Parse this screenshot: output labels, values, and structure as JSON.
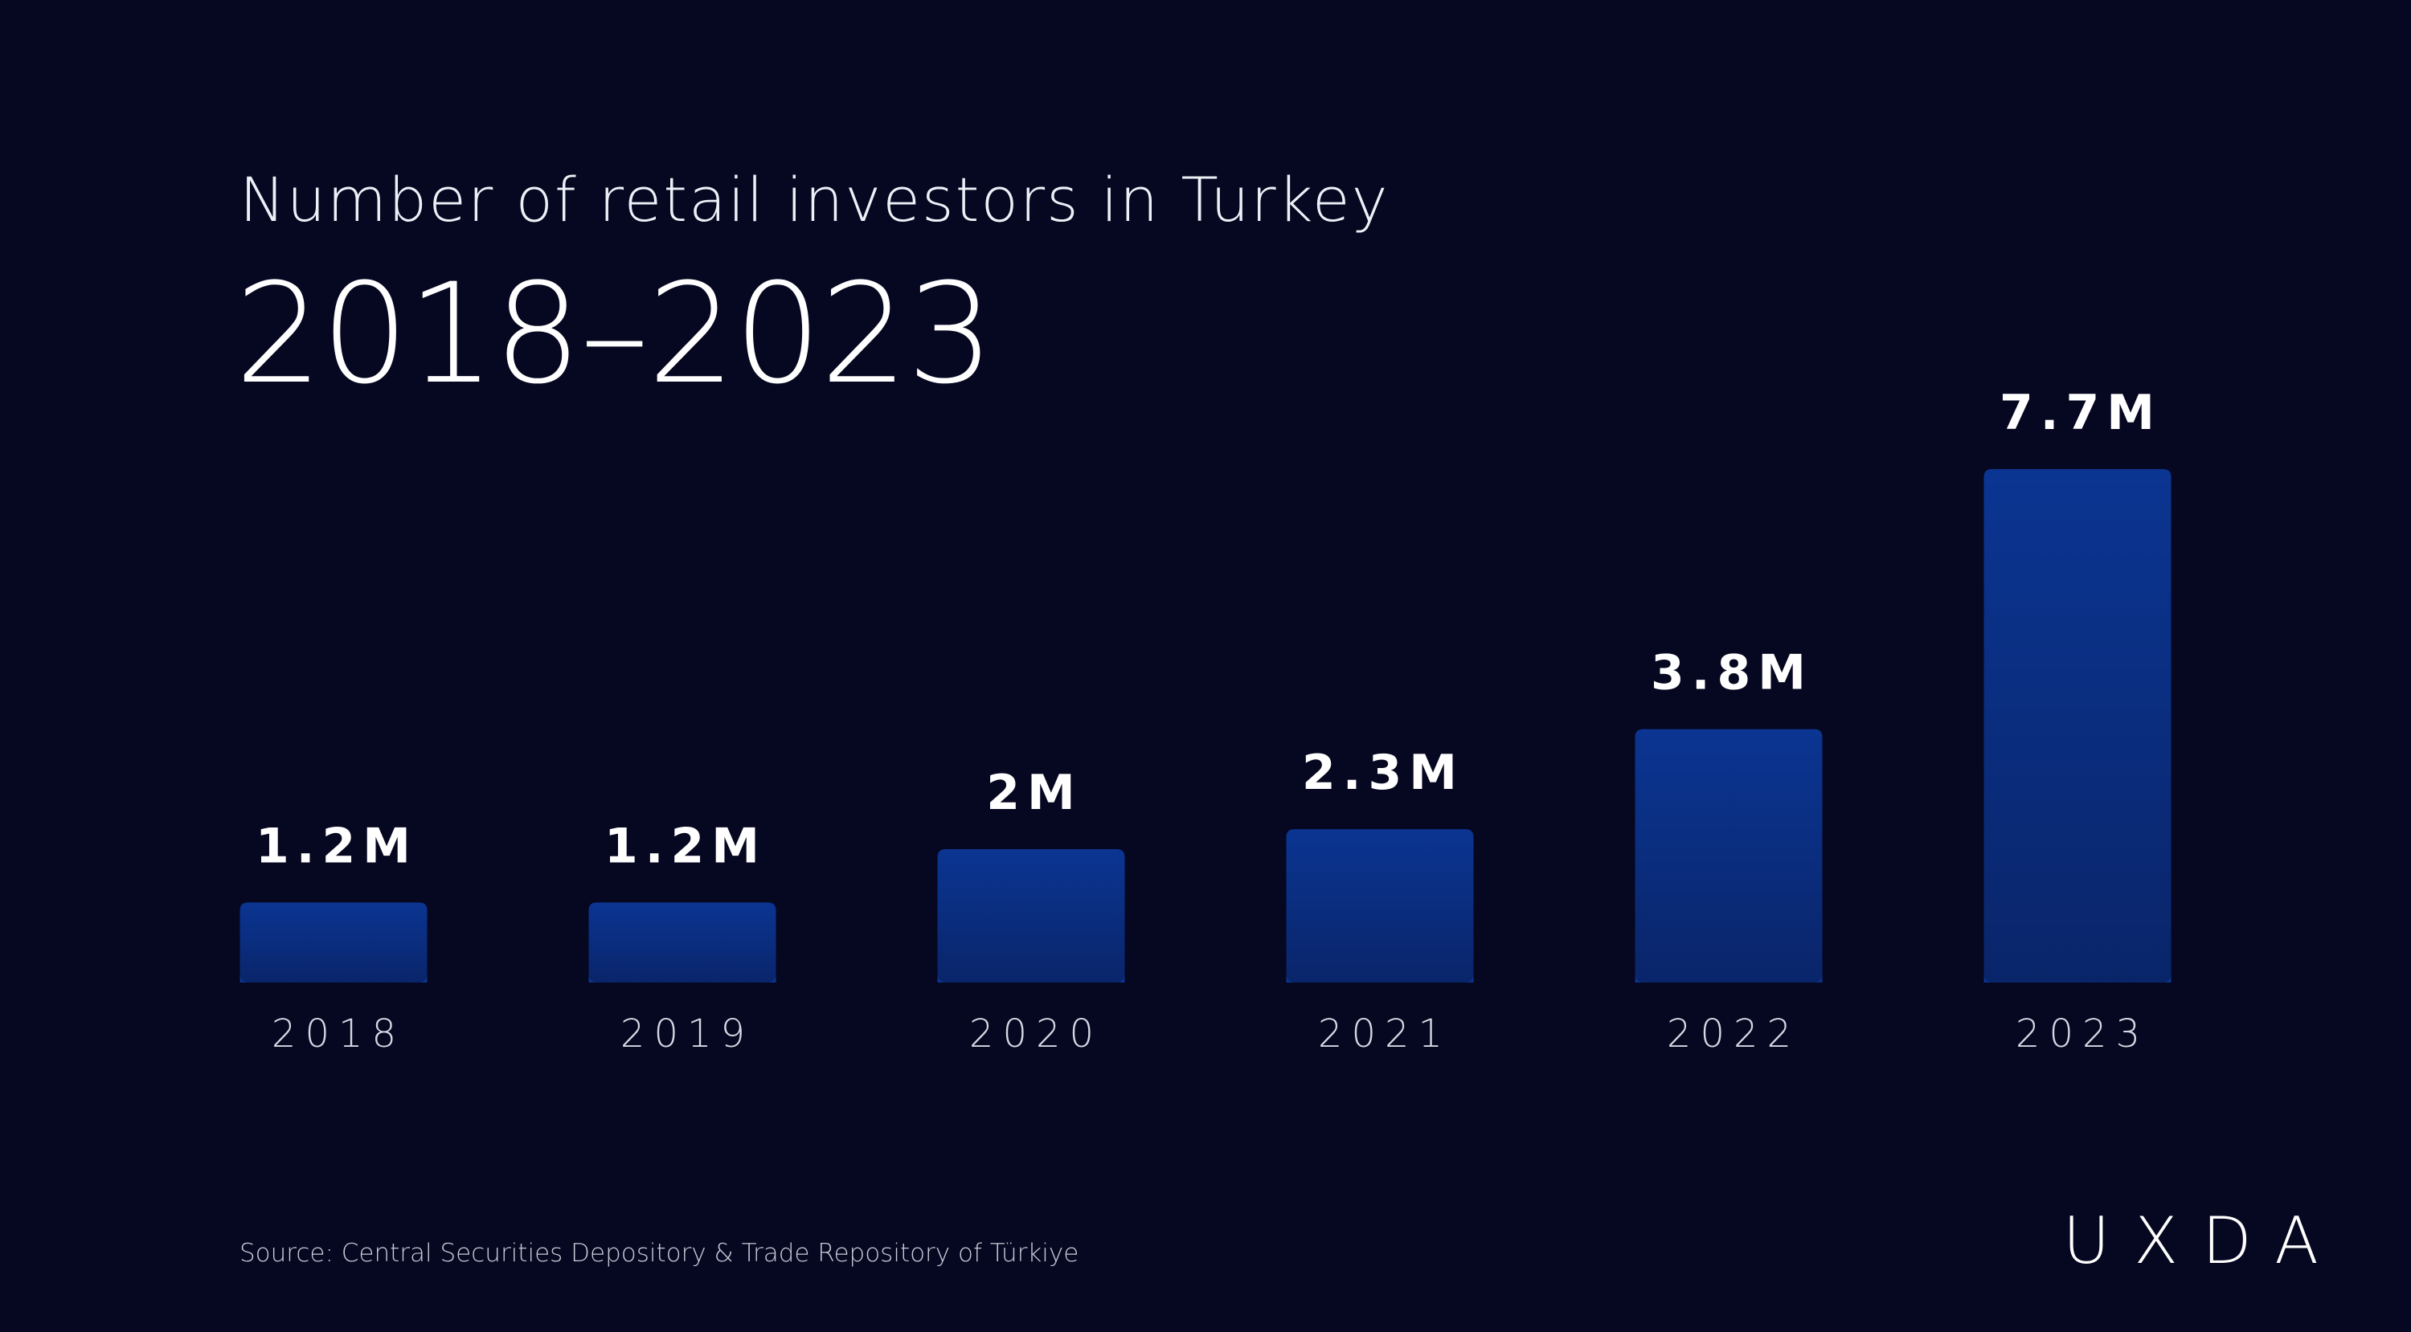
{
  "chart_data": {
    "type": "bar",
    "title": "Number of retail investors in Turkey",
    "subtitle": "2018–2023",
    "categories": [
      "2018",
      "2019",
      "2020",
      "2021",
      "2022",
      "2023"
    ],
    "values": [
      1.2,
      1.2,
      2,
      2.3,
      3.8,
      7.7
    ],
    "value_labels": [
      "1.2M",
      "1.2M",
      "2M",
      "2.3M",
      "3.8M",
      "7.7M"
    ],
    "color": "#0b3592",
    "source": "Source: Central Securities Depository & Trade Repository of Türkiye",
    "logo": "UXDA"
  }
}
